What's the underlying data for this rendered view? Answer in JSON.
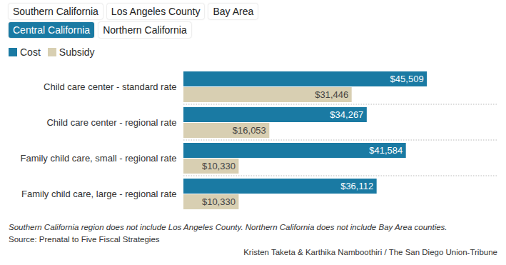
{
  "chart_data": {
    "type": "bar",
    "orientation": "horizontal",
    "tabs": [
      "Southern California",
      "Los Angeles County",
      "Bay Area",
      "Central California",
      "Northern California"
    ],
    "active_tab": "Central California",
    "categories": [
      "Child care center - standard rate",
      "Child care center - regional rate",
      "Family child care, small - regional rate",
      "Family child care, large - regional rate"
    ],
    "series": [
      {
        "name": "Cost",
        "color": "#1a7aa3",
        "values": [
          45509,
          34267,
          41584,
          36112
        ],
        "value_labels": [
          "$45,509",
          "$34,267",
          "$41,584",
          "$36,112"
        ]
      },
      {
        "name": "Subsidy",
        "color": "#d8cfb2",
        "values": [
          31446,
          16053,
          10330,
          10330
        ],
        "value_labels": [
          "$31,446",
          "$16,053",
          "$10,330",
          "$10,330"
        ]
      }
    ],
    "xlim": [
      0,
      58700
    ],
    "xticks": [],
    "tick_labels": "y",
    "data_labels": true,
    "note": "Southern California region does not include Los Angeles County. Northern California does not include Bay Area counties.",
    "source": "Source: Prenatal to Five Fiscal Strategies",
    "credit": "Kristen Taketa & Karthika Namboothiri / The San Diego Union-Tribune"
  }
}
